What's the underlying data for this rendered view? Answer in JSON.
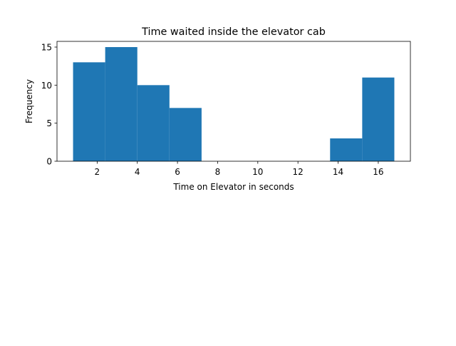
{
  "chart_data": {
    "type": "bar",
    "title": "Time waited inside the elevator cab",
    "xlabel": "Time on Elevator in seconds",
    "ylabel": "Frequency",
    "bins": [
      {
        "start": 0.8,
        "end": 2.4,
        "count": 13
      },
      {
        "start": 2.4,
        "end": 4.0,
        "count": 15
      },
      {
        "start": 4.0,
        "end": 5.6,
        "count": 10
      },
      {
        "start": 5.6,
        "end": 7.2,
        "count": 7
      },
      {
        "start": 7.2,
        "end": 8.8,
        "count": 0
      },
      {
        "start": 8.8,
        "end": 10.4,
        "count": 0
      },
      {
        "start": 10.4,
        "end": 12.0,
        "count": 0
      },
      {
        "start": 12.0,
        "end": 13.6,
        "count": 0
      },
      {
        "start": 13.6,
        "end": 15.2,
        "count": 3
      },
      {
        "start": 15.2,
        "end": 16.8,
        "count": 11
      }
    ],
    "xlim": [
      0.0,
      17.6
    ],
    "ylim": [
      0,
      15.75
    ],
    "xticks": [
      2,
      4,
      6,
      8,
      10,
      12,
      14,
      16
    ],
    "yticks": [
      0,
      5,
      10,
      15
    ],
    "bar_color": "#1f77b4",
    "grid": false,
    "legend": "none"
  }
}
